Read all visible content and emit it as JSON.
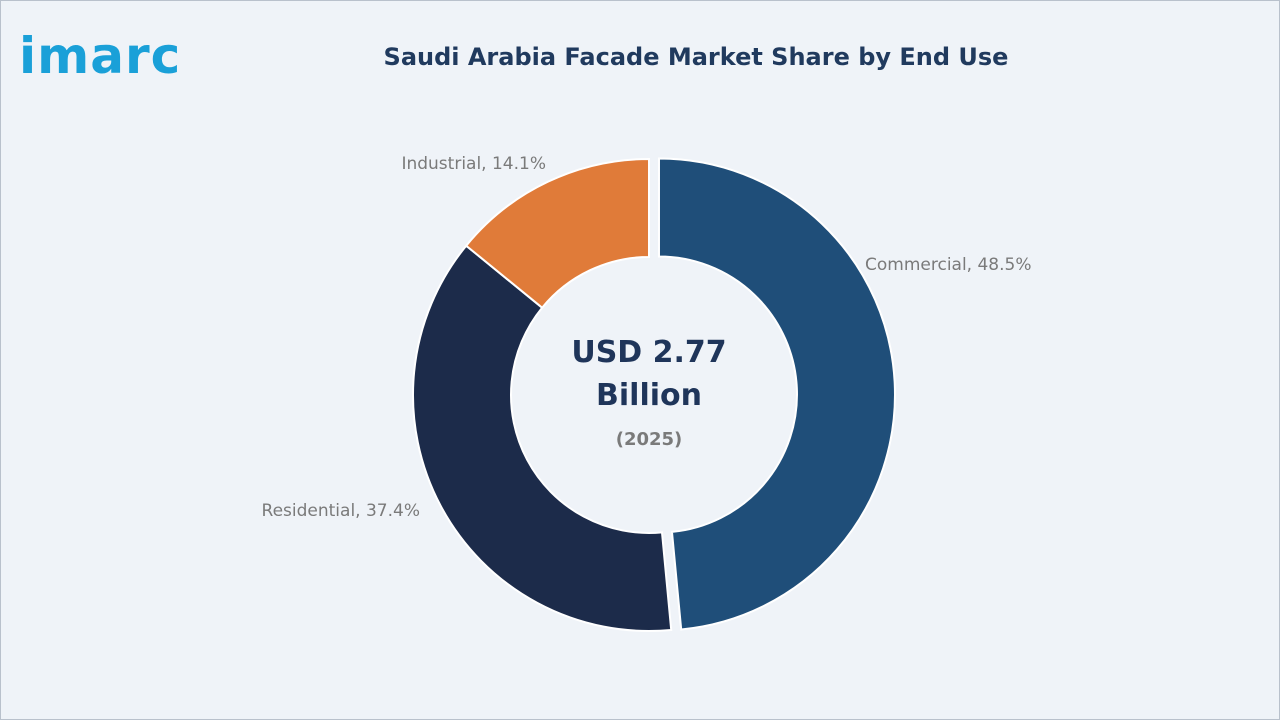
{
  "brand": {
    "logo_text": "imarc",
    "logo_color": "#1aa0d8"
  },
  "chart_data": {
    "type": "pie",
    "variant": "donut",
    "title": "Saudi Arabia Facade Market Share by End Use",
    "center_value_line1": "USD 2.77",
    "center_value_line2": "Billion",
    "center_year": "(2025)",
    "slices": [
      {
        "category": "Commercial",
        "value": 48.5,
        "label": "Commercial, 48.5%",
        "color": "#1f4e79",
        "exploded": true
      },
      {
        "category": "Residential",
        "value": 37.4,
        "label": "Residential, 37.4%",
        "color": "#1c2b4a",
        "exploded": false
      },
      {
        "category": "Industrial",
        "value": 14.1,
        "label": "Industrial, 14.1%",
        "color": "#e07b39",
        "exploded": false
      }
    ],
    "start_angle": "top",
    "direction": "clockwise"
  }
}
